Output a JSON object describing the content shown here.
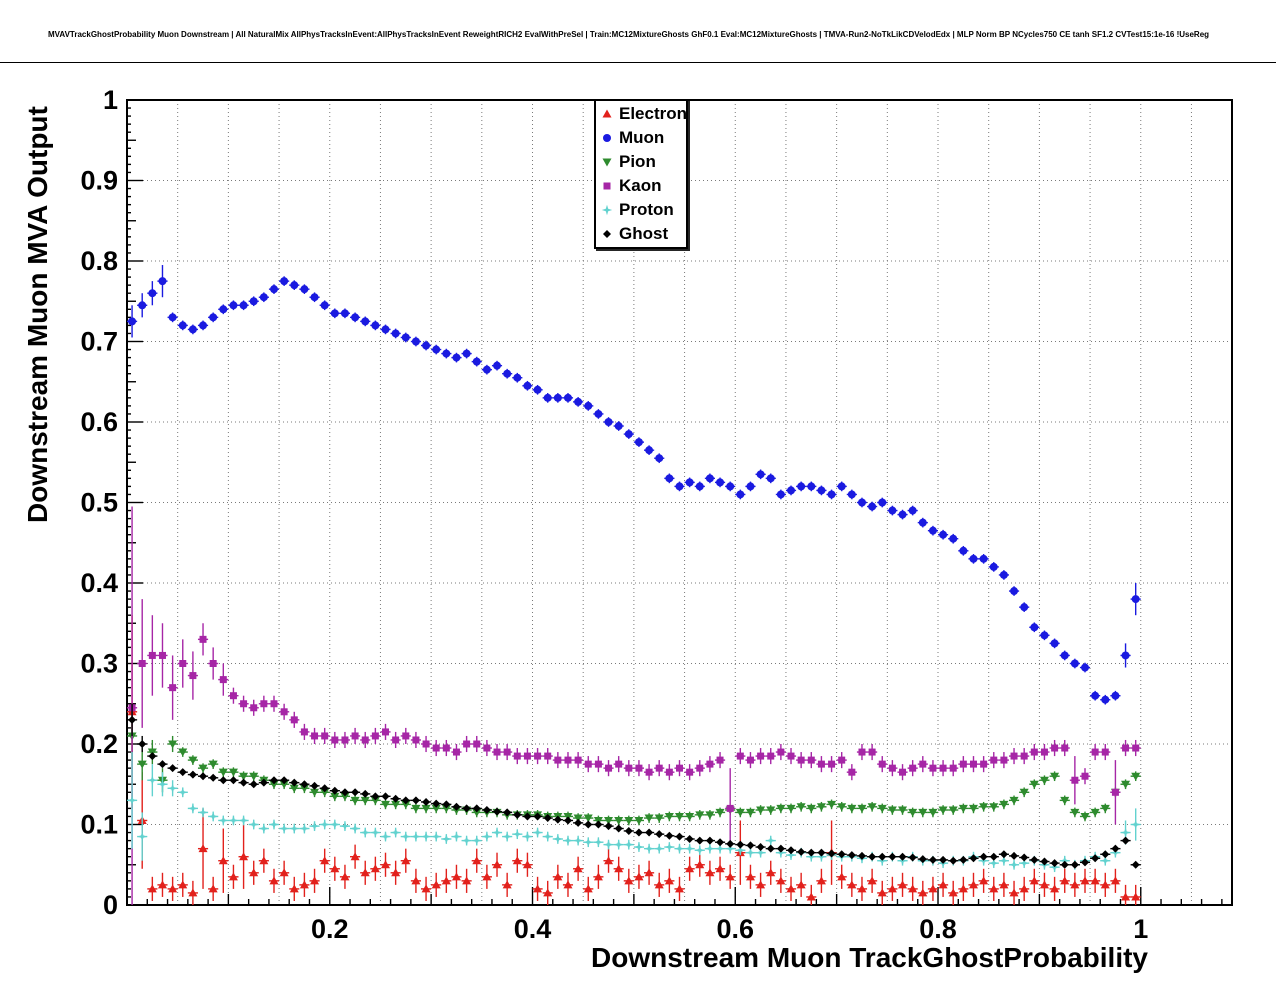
{
  "header": {
    "title": "MVAVTrackGhostProbability Muon Downstream | All NaturalMix AllPhysTracksInEvent:AllPhysTracksInEvent ReweightRICH2 EvalWithPreSel | Train:MC12MixtureGhosts GhF0.1 Eval:MC12MixtureGhosts | TMVA-Run2-NoTkLikCDVelodEdx | MLP Norm BP NCycles750 CE tanh SF1.2 CVTest15:1e-16 !UseReg"
  },
  "chart_data": {
    "type": "scatter",
    "title": "MVAVTrackGhostProbability Muon Downstream | All NaturalMix AllPhysTracksInEvent:AllPhysTracksInEvent ReweightRICH2 EvalWithPreSel | Train:MC12MixtureGhosts GhF0.1 Eval:MC12MixtureGhosts | TMVA-Run2-NoTkLikCDVelodEdx | MLP Norm BP NCycles750 CE tanh SF1.2 CVTest15:1e-16 !UseReg",
    "xlabel": "Downstream Muon TrackGhostProbability",
    "ylabel": "Downstream Muon MVA Output",
    "xlim": [
      0,
      1.09
    ],
    "ylim": [
      0,
      1
    ],
    "x_ticks": [
      0.2,
      0.4,
      0.6,
      0.8,
      1
    ],
    "y_ticks": [
      0,
      0.1,
      0.2,
      0.3,
      0.4,
      0.5,
      0.6,
      0.7,
      0.8,
      0.9,
      1
    ],
    "grid": true,
    "legend_position": "top-center",
    "bin_half_width": 0.005,
    "x": [
      0.005,
      0.015,
      0.025,
      0.035,
      0.045,
      0.055,
      0.065,
      0.075,
      0.085,
      0.095,
      0.105,
      0.115,
      0.125,
      0.135,
      0.145,
      0.155,
      0.165,
      0.175,
      0.185,
      0.195,
      0.205,
      0.215,
      0.225,
      0.235,
      0.245,
      0.255,
      0.265,
      0.275,
      0.285,
      0.295,
      0.305,
      0.315,
      0.325,
      0.335,
      0.345,
      0.355,
      0.365,
      0.375,
      0.385,
      0.395,
      0.405,
      0.415,
      0.425,
      0.435,
      0.445,
      0.455,
      0.465,
      0.475,
      0.485,
      0.495,
      0.505,
      0.515,
      0.525,
      0.535,
      0.545,
      0.555,
      0.565,
      0.575,
      0.585,
      0.595,
      0.605,
      0.615,
      0.625,
      0.635,
      0.645,
      0.655,
      0.665,
      0.675,
      0.685,
      0.695,
      0.705,
      0.715,
      0.725,
      0.735,
      0.745,
      0.755,
      0.765,
      0.775,
      0.785,
      0.795,
      0.805,
      0.815,
      0.825,
      0.835,
      0.845,
      0.855,
      0.865,
      0.875,
      0.885,
      0.895,
      0.905,
      0.915,
      0.925,
      0.935,
      0.945,
      0.955,
      0.965,
      0.975,
      0.985,
      0.995
    ],
    "series": [
      {
        "name": "Electron",
        "marker": "triangle-up",
        "color": "#e2211c",
        "yerr_default": 0.015,
        "yerr_overrides": {
          "0": 0.12,
          "1": 0.06,
          "7": 0.05,
          "9": 0.04,
          "11": 0.04,
          "60": 0.04,
          "69": 0.04
        },
        "values": [
          0.24,
          0.105,
          0.02,
          0.025,
          0.02,
          0.025,
          0.015,
          0.07,
          0.02,
          0.055,
          0.035,
          0.06,
          0.04,
          0.055,
          0.03,
          0.04,
          0.02,
          0.025,
          0.03,
          0.055,
          0.045,
          0.035,
          0.06,
          0.04,
          0.045,
          0.05,
          0.04,
          0.055,
          0.03,
          0.02,
          0.025,
          0.03,
          0.035,
          0.03,
          0.055,
          0.035,
          0.05,
          0.025,
          0.055,
          0.05,
          0.02,
          0.015,
          0.035,
          0.025,
          0.045,
          0.02,
          0.035,
          0.055,
          0.045,
          0.03,
          0.035,
          0.04,
          0.025,
          0.03,
          0.02,
          0.045,
          0.05,
          0.04,
          0.045,
          0.035,
          0.065,
          0.035,
          0.025,
          0.04,
          0.03,
          0.02,
          0.025,
          0.01,
          0.03,
          0.065,
          0.035,
          0.025,
          0.02,
          0.03,
          0.015,
          0.02,
          0.025,
          0.02,
          0.015,
          0.02,
          0.025,
          0.015,
          0.02,
          0.025,
          0.03,
          0.02,
          0.025,
          0.015,
          0.02,
          0.03,
          0.025,
          0.02,
          0.03,
          0.025,
          0.03,
          0.03,
          0.025,
          0.03,
          0.01,
          0.01
        ]
      },
      {
        "name": "Muon",
        "marker": "circle",
        "color": "#1a1ae0",
        "yerr_default": 0.006,
        "yerr_overrides": {
          "0": 0.02,
          "1": 0.015,
          "2": 0.015,
          "3": 0.02,
          "98": 0.015,
          "99": 0.02
        },
        "values": [
          0.725,
          0.745,
          0.76,
          0.775,
          0.73,
          0.72,
          0.715,
          0.72,
          0.73,
          0.74,
          0.745,
          0.745,
          0.75,
          0.755,
          0.765,
          0.775,
          0.77,
          0.765,
          0.755,
          0.745,
          0.735,
          0.735,
          0.73,
          0.725,
          0.72,
          0.715,
          0.71,
          0.705,
          0.7,
          0.695,
          0.69,
          0.685,
          0.68,
          0.685,
          0.675,
          0.665,
          0.67,
          0.66,
          0.655,
          0.645,
          0.64,
          0.63,
          0.63,
          0.63,
          0.625,
          0.62,
          0.61,
          0.6,
          0.595,
          0.585,
          0.575,
          0.565,
          0.555,
          0.53,
          0.52,
          0.525,
          0.52,
          0.53,
          0.525,
          0.52,
          0.51,
          0.52,
          0.535,
          0.53,
          0.51,
          0.515,
          0.52,
          0.52,
          0.515,
          0.51,
          0.52,
          0.51,
          0.5,
          0.495,
          0.5,
          0.49,
          0.485,
          0.49,
          0.475,
          0.465,
          0.46,
          0.455,
          0.44,
          0.43,
          0.43,
          0.42,
          0.41,
          0.39,
          0.37,
          0.345,
          0.335,
          0.325,
          0.31,
          0.3,
          0.295,
          0.26,
          0.255,
          0.26,
          0.31,
          0.38
        ]
      },
      {
        "name": "Pion",
        "marker": "triangle-down",
        "color": "#2e8b2e",
        "yerr_default": 0.006,
        "yerr_overrides": {
          "0": 0.03,
          "1": 0.02,
          "2": 0.015,
          "3": 0.015,
          "4": 0.01
        },
        "values": [
          0.21,
          0.175,
          0.19,
          0.155,
          0.2,
          0.19,
          0.18,
          0.17,
          0.175,
          0.165,
          0.165,
          0.16,
          0.16,
          0.155,
          0.15,
          0.15,
          0.145,
          0.145,
          0.14,
          0.14,
          0.135,
          0.135,
          0.13,
          0.13,
          0.13,
          0.125,
          0.125,
          0.125,
          0.12,
          0.12,
          0.12,
          0.12,
          0.118,
          0.118,
          0.115,
          0.115,
          0.115,
          0.112,
          0.112,
          0.112,
          0.112,
          0.11,
          0.11,
          0.11,
          0.108,
          0.108,
          0.105,
          0.105,
          0.105,
          0.105,
          0.105,
          0.108,
          0.108,
          0.11,
          0.11,
          0.11,
          0.112,
          0.112,
          0.115,
          0.118,
          0.115,
          0.115,
          0.118,
          0.118,
          0.12,
          0.12,
          0.122,
          0.12,
          0.122,
          0.125,
          0.122,
          0.12,
          0.12,
          0.122,
          0.12,
          0.118,
          0.118,
          0.115,
          0.115,
          0.115,
          0.118,
          0.118,
          0.12,
          0.12,
          0.122,
          0.122,
          0.125,
          0.13,
          0.14,
          0.15,
          0.155,
          0.16,
          0.13,
          0.115,
          0.11,
          0.115,
          0.12,
          0.14,
          0.15,
          0.16
        ]
      },
      {
        "name": "Kaon",
        "marker": "square",
        "color": "#a626a6",
        "yerr_default": 0.01,
        "yerr_overrides": {
          "0": 0.25,
          "1": 0.08,
          "2": 0.05,
          "3": 0.04,
          "4": 0.04,
          "5": 0.03,
          "6": 0.03,
          "7": 0.02,
          "8": 0.02,
          "9": 0.02,
          "59": 0.05,
          "93": 0.03,
          "97": 0.04
        },
        "values": [
          0.245,
          0.3,
          0.31,
          0.31,
          0.27,
          0.3,
          0.285,
          0.33,
          0.3,
          0.28,
          0.26,
          0.25,
          0.245,
          0.25,
          0.25,
          0.24,
          0.23,
          0.215,
          0.21,
          0.21,
          0.205,
          0.205,
          0.21,
          0.205,
          0.21,
          0.215,
          0.205,
          0.21,
          0.205,
          0.2,
          0.195,
          0.195,
          0.19,
          0.2,
          0.2,
          0.195,
          0.19,
          0.19,
          0.185,
          0.185,
          0.185,
          0.185,
          0.18,
          0.18,
          0.18,
          0.175,
          0.175,
          0.17,
          0.175,
          0.17,
          0.17,
          0.165,
          0.17,
          0.165,
          0.17,
          0.165,
          0.17,
          0.175,
          0.18,
          0.12,
          0.185,
          0.18,
          0.185,
          0.185,
          0.19,
          0.185,
          0.18,
          0.18,
          0.175,
          0.175,
          0.18,
          0.165,
          0.19,
          0.19,
          0.175,
          0.17,
          0.165,
          0.17,
          0.175,
          0.17,
          0.17,
          0.17,
          0.175,
          0.175,
          0.175,
          0.18,
          0.18,
          0.185,
          0.185,
          0.19,
          0.19,
          0.195,
          0.195,
          0.155,
          0.16,
          0.19,
          0.19,
          0.14,
          0.195,
          0.195
        ]
      },
      {
        "name": "Proton",
        "marker": "star",
        "color": "#62d2cf",
        "yerr_default": 0.006,
        "yerr_overrides": {
          "0": 0.06,
          "1": 0.03,
          "2": 0.02,
          "3": 0.015,
          "4": 0.01,
          "98": 0.015,
          "99": 0.02
        },
        "values": [
          0.13,
          0.085,
          0.155,
          0.15,
          0.145,
          0.14,
          0.12,
          0.115,
          0.11,
          0.105,
          0.105,
          0.105,
          0.1,
          0.095,
          0.1,
          0.095,
          0.095,
          0.095,
          0.098,
          0.1,
          0.1,
          0.098,
          0.095,
          0.09,
          0.09,
          0.085,
          0.09,
          0.085,
          0.085,
          0.085,
          0.085,
          0.082,
          0.085,
          0.08,
          0.08,
          0.085,
          0.09,
          0.085,
          0.088,
          0.085,
          0.09,
          0.085,
          0.082,
          0.08,
          0.08,
          0.078,
          0.078,
          0.075,
          0.075,
          0.075,
          0.072,
          0.07,
          0.07,
          0.072,
          0.07,
          0.07,
          0.068,
          0.07,
          0.07,
          0.07,
          0.068,
          0.065,
          0.065,
          0.08,
          0.065,
          0.062,
          0.065,
          0.06,
          0.06,
          0.062,
          0.06,
          0.06,
          0.058,
          0.06,
          0.055,
          0.06,
          0.055,
          0.06,
          0.055,
          0.055,
          0.052,
          0.055,
          0.055,
          0.06,
          0.055,
          0.052,
          0.055,
          0.05,
          0.052,
          0.055,
          0.05,
          0.047,
          0.055,
          0.05,
          0.055,
          0.06,
          0.055,
          0.065,
          0.09,
          0.1
        ]
      },
      {
        "name": "Ghost",
        "marker": "diamond",
        "color": "#000000",
        "yerr_default": 0.004,
        "yerr_overrides": {
          "0": 0.02,
          "1": 0.01
        },
        "values": [
          0.23,
          0.2,
          0.185,
          0.175,
          0.17,
          0.165,
          0.162,
          0.16,
          0.158,
          0.155,
          0.155,
          0.152,
          0.15,
          0.152,
          0.155,
          0.155,
          0.152,
          0.15,
          0.148,
          0.145,
          0.142,
          0.14,
          0.14,
          0.138,
          0.135,
          0.135,
          0.132,
          0.13,
          0.13,
          0.128,
          0.126,
          0.125,
          0.122,
          0.12,
          0.12,
          0.118,
          0.116,
          0.115,
          0.112,
          0.11,
          0.11,
          0.108,
          0.106,
          0.105,
          0.102,
          0.1,
          0.1,
          0.098,
          0.095,
          0.092,
          0.09,
          0.09,
          0.088,
          0.086,
          0.085,
          0.082,
          0.08,
          0.08,
          0.078,
          0.076,
          0.075,
          0.074,
          0.072,
          0.07,
          0.07,
          0.068,
          0.066,
          0.065,
          0.065,
          0.064,
          0.063,
          0.062,
          0.061,
          0.06,
          0.06,
          0.06,
          0.06,
          0.059,
          0.057,
          0.056,
          0.056,
          0.055,
          0.056,
          0.058,
          0.06,
          0.06,
          0.063,
          0.061,
          0.059,
          0.056,
          0.054,
          0.052,
          0.05,
          0.05,
          0.053,
          0.058,
          0.063,
          0.07,
          0.08,
          0.05
        ]
      }
    ]
  }
}
